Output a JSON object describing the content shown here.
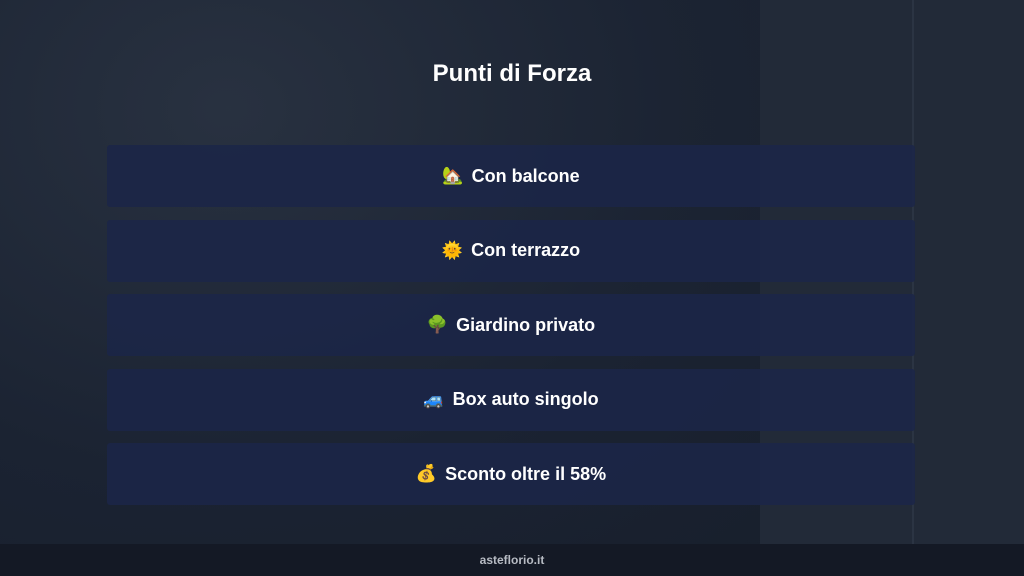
{
  "title": "Punti di Forza",
  "items": [
    {
      "icon": "🏡",
      "icon_name": "house-with-garden-icon",
      "label": "Con balcone"
    },
    {
      "icon": "🌞",
      "icon_name": "sun-icon",
      "label": "Con terrazzo"
    },
    {
      "icon": "🌳",
      "icon_name": "tree-icon",
      "label": "Giardino privato"
    },
    {
      "icon": "🚙",
      "icon_name": "car-icon",
      "label": "Box auto singolo"
    },
    {
      "icon": "💰",
      "icon_name": "money-bag-icon",
      "label": "Sconto oltre il 58%"
    }
  ],
  "footer": {
    "text": "asteflorio.it"
  }
}
